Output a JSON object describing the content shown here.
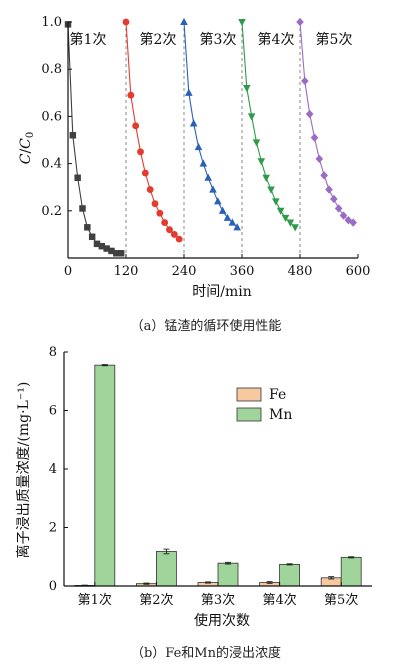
{
  "chart_data": [
    {
      "type": "line",
      "caption": "（a）锰渣的循环使用性能",
      "xlabel": "时间/min",
      "ylabel": "C/C0",
      "xlim": [
        0,
        600
      ],
      "ylim": [
        0,
        1.0
      ],
      "xticks": [
        "0",
        "120",
        "240",
        "360",
        "480",
        "600"
      ],
      "yticks": [
        "0.2",
        "0.4",
        "0.6",
        "0.8",
        "1.0"
      ],
      "cycle_boundaries": [
        120,
        240,
        360,
        480
      ],
      "annotations": [
        "第1次",
        "第2次",
        "第3次",
        "第4次",
        "第5次"
      ],
      "series": [
        {
          "name": "第1次",
          "color": "#404040",
          "marker": "square",
          "x": [
            0,
            10,
            20,
            30,
            40,
            50,
            60,
            70,
            80,
            90,
            100,
            110
          ],
          "y": [
            0.99,
            0.52,
            0.34,
            0.21,
            0.13,
            0.09,
            0.06,
            0.05,
            0.04,
            0.03,
            0.02,
            0.02
          ]
        },
        {
          "name": "第2次",
          "color": "#e33b2e",
          "marker": "circle",
          "x": [
            120,
            130,
            140,
            150,
            160,
            170,
            180,
            190,
            200,
            210,
            220,
            230
          ],
          "y": [
            1.0,
            0.69,
            0.56,
            0.45,
            0.36,
            0.29,
            0.23,
            0.19,
            0.15,
            0.12,
            0.1,
            0.08
          ]
        },
        {
          "name": "第3次",
          "color": "#2a61b8",
          "marker": "triangle-up",
          "x": [
            240,
            250,
            260,
            270,
            280,
            290,
            300,
            310,
            320,
            330,
            340,
            350
          ],
          "y": [
            1.0,
            0.7,
            0.57,
            0.47,
            0.4,
            0.34,
            0.29,
            0.24,
            0.2,
            0.17,
            0.15,
            0.13
          ]
        },
        {
          "name": "第4次",
          "color": "#2e9b4a",
          "marker": "triangle-down",
          "x": [
            360,
            370,
            380,
            390,
            400,
            410,
            420,
            430,
            440,
            450,
            460,
            470
          ],
          "y": [
            1.0,
            0.72,
            0.6,
            0.49,
            0.41,
            0.34,
            0.29,
            0.24,
            0.2,
            0.17,
            0.15,
            0.13
          ]
        },
        {
          "name": "第5次",
          "color": "#9b6cc4",
          "marker": "diamond",
          "x": [
            480,
            490,
            500,
            510,
            520,
            530,
            540,
            550,
            560,
            570,
            580,
            590
          ],
          "y": [
            1.0,
            0.75,
            0.61,
            0.51,
            0.42,
            0.35,
            0.29,
            0.25,
            0.21,
            0.18,
            0.16,
            0.15
          ]
        }
      ]
    },
    {
      "type": "bar",
      "caption": "（b）Fe和Mn的浸出浓度",
      "xlabel": "使用次数",
      "ylabel": "离子浸出质量浓度/(mg·L⁻¹)",
      "ylim": [
        0,
        8
      ],
      "yticks": [
        "0",
        "2",
        "4",
        "6",
        "8"
      ],
      "categories": [
        "第1次",
        "第2次",
        "第3次",
        "第4次",
        "第5次"
      ],
      "series": [
        {
          "name": "Fe",
          "color": "#f6c9a0",
          "values": [
            0.02,
            0.08,
            0.12,
            0.12,
            0.28
          ],
          "errors": [
            0.01,
            0.02,
            0.02,
            0.03,
            0.04
          ]
        },
        {
          "name": "Mn",
          "color": "#9fd59a",
          "values": [
            7.55,
            1.18,
            0.78,
            0.74,
            0.98
          ],
          "errors": [
            0.02,
            0.08,
            0.03,
            0.02,
            0.02
          ]
        }
      ]
    }
  ]
}
